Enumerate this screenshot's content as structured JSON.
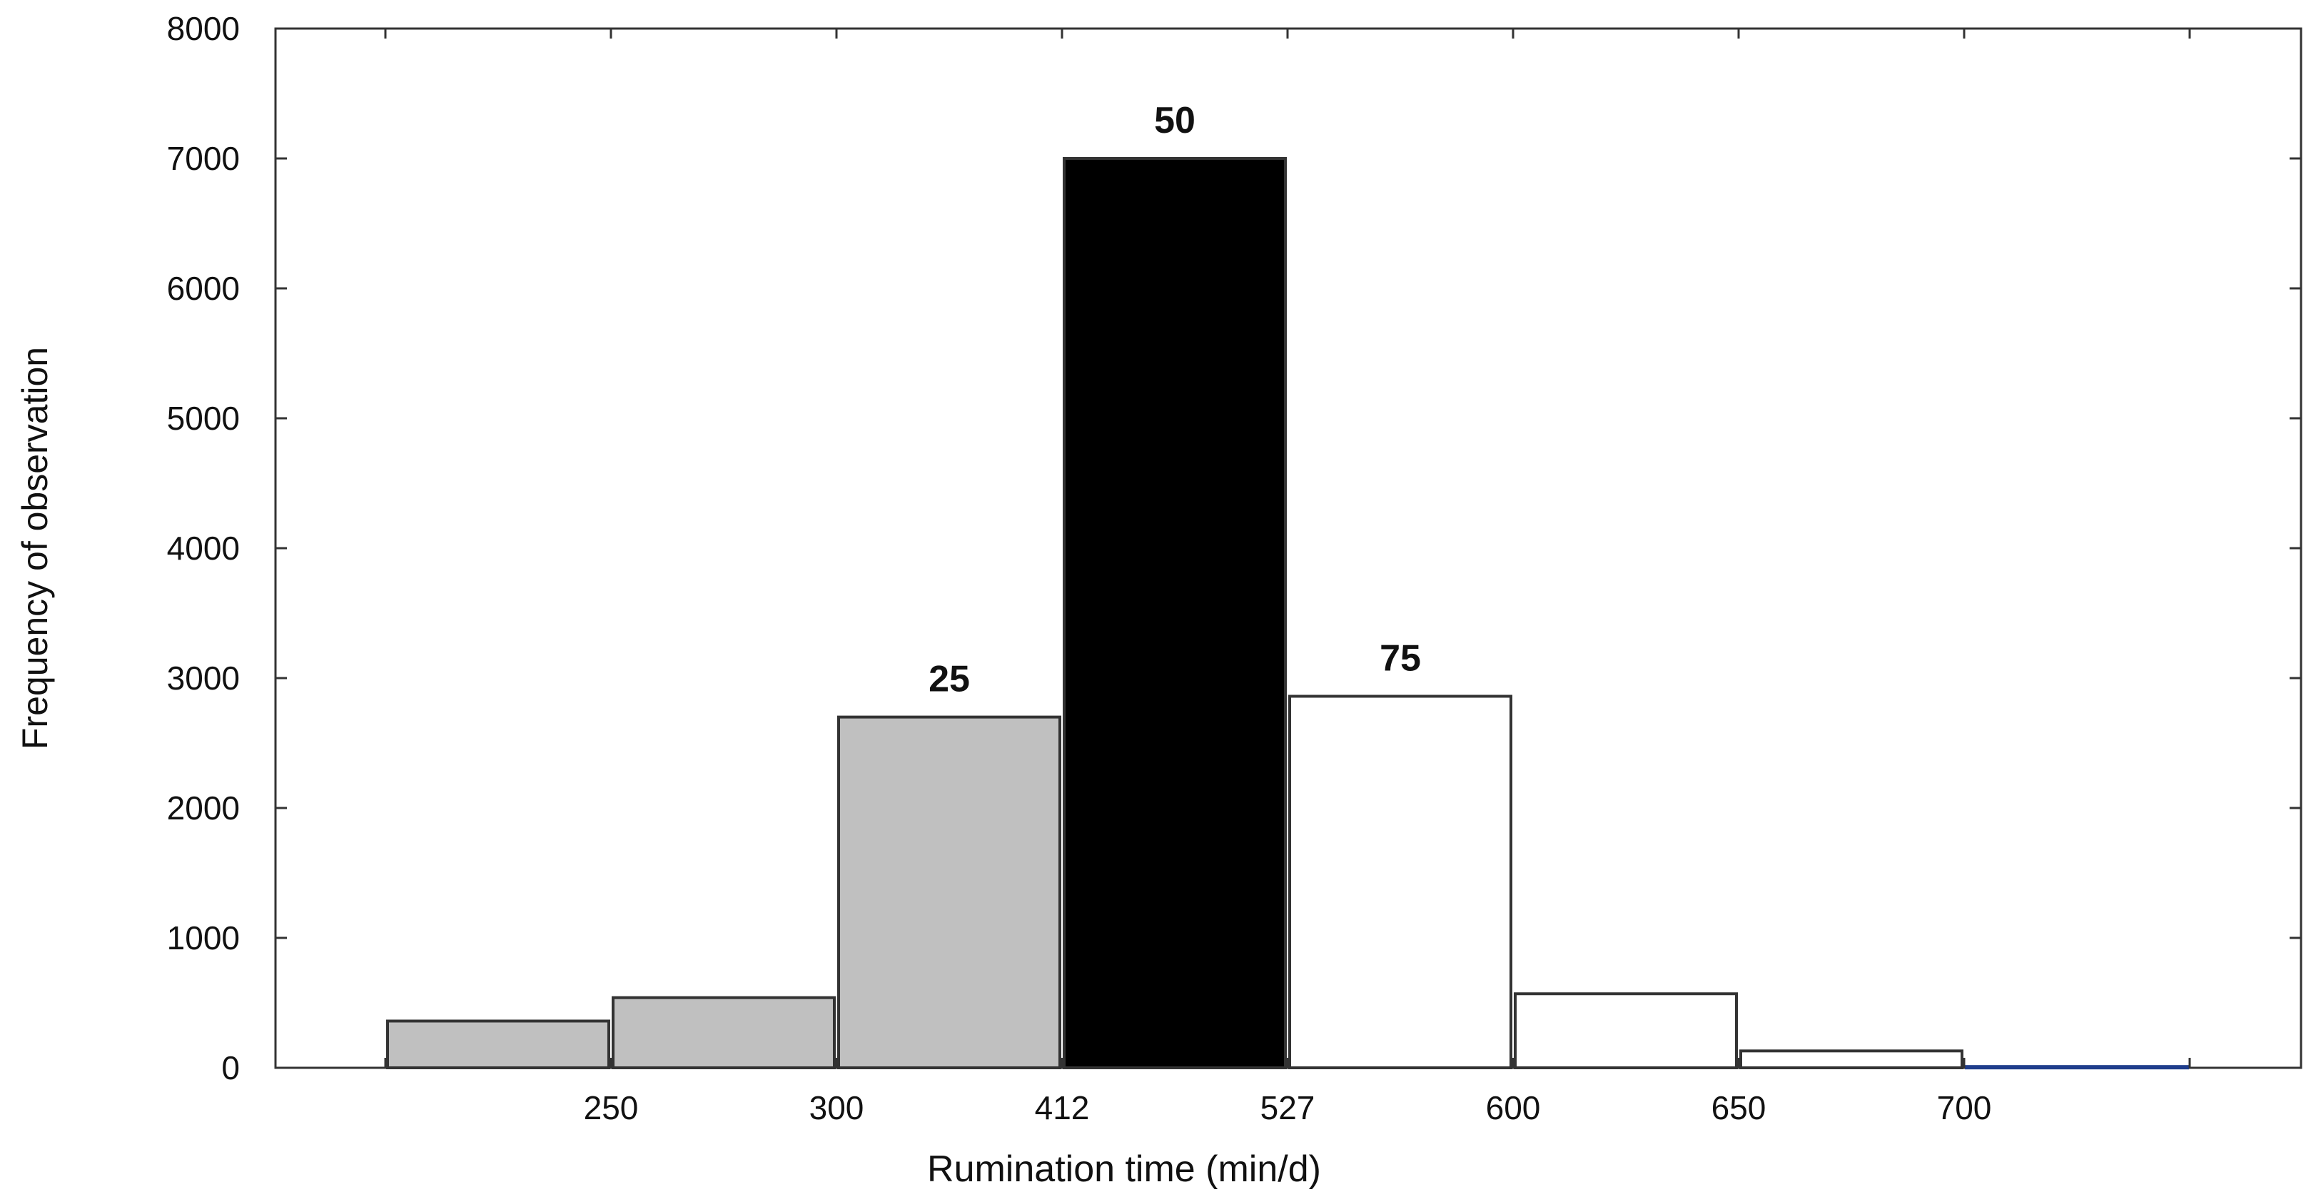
{
  "chart_data": {
    "type": "bar",
    "xlabel": "Rumination time (min/d)",
    "ylabel": "Frequency of observation",
    "ylim": [
      0,
      8000
    ],
    "y_ticks": [
      0,
      1000,
      2000,
      3000,
      4000,
      5000,
      6000,
      7000,
      8000
    ],
    "x_tick_labels": [
      "250",
      "300",
      "412",
      "527",
      "600",
      "650",
      "700"
    ],
    "bars": [
      {
        "value": 360,
        "fill": "#c0c0c0"
      },
      {
        "value": 540,
        "fill": "#c0c0c0"
      },
      {
        "value": 2700,
        "fill": "#c0c0c0"
      },
      {
        "value": 7000,
        "fill": "#000000"
      },
      {
        "value": 2860,
        "fill": "#ffffff"
      },
      {
        "value": 570,
        "fill": "#ffffff"
      },
      {
        "value": 130,
        "fill": "#ffffff"
      },
      {
        "value": 10,
        "fill": "#ffffff",
        "stroke": "#1f3d8c"
      }
    ],
    "percentile_labels": [
      {
        "text": "25",
        "bar": 2
      },
      {
        "text": "50",
        "bar": 3
      },
      {
        "text": "75",
        "bar": 4
      }
    ],
    "grid": false,
    "legend": "none"
  }
}
